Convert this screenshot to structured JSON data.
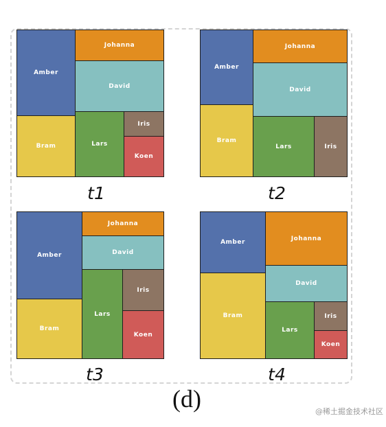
{
  "panel_label": "(d)",
  "watermark": "@稀土掘金技术社区",
  "treemaps": [
    {
      "caption": "t1",
      "cells": [
        "Amber",
        "Johanna",
        "David",
        "Bram",
        "Lars",
        "Iris",
        "Koen"
      ]
    },
    {
      "caption": "t2",
      "cells": [
        "Amber",
        "Johanna",
        "David",
        "Bram",
        "Lars",
        "Iris"
      ]
    },
    {
      "caption": "t3",
      "cells": [
        "Amber",
        "Johanna",
        "David",
        "Bram",
        "Lars",
        "Iris",
        "Koen"
      ]
    },
    {
      "caption": "t4",
      "cells": [
        "Amber",
        "Johanna",
        "David",
        "Bram",
        "Lars",
        "Iris",
        "Koen"
      ]
    }
  ],
  "colors": {
    "Amber": "#5471ab",
    "Johanna": "#e28d1f",
    "David": "#86c0c0",
    "Bram": "#e6c84a",
    "Lars": "#69a04d",
    "Iris": "#8d7563",
    "Koen": "#d05b58"
  }
}
